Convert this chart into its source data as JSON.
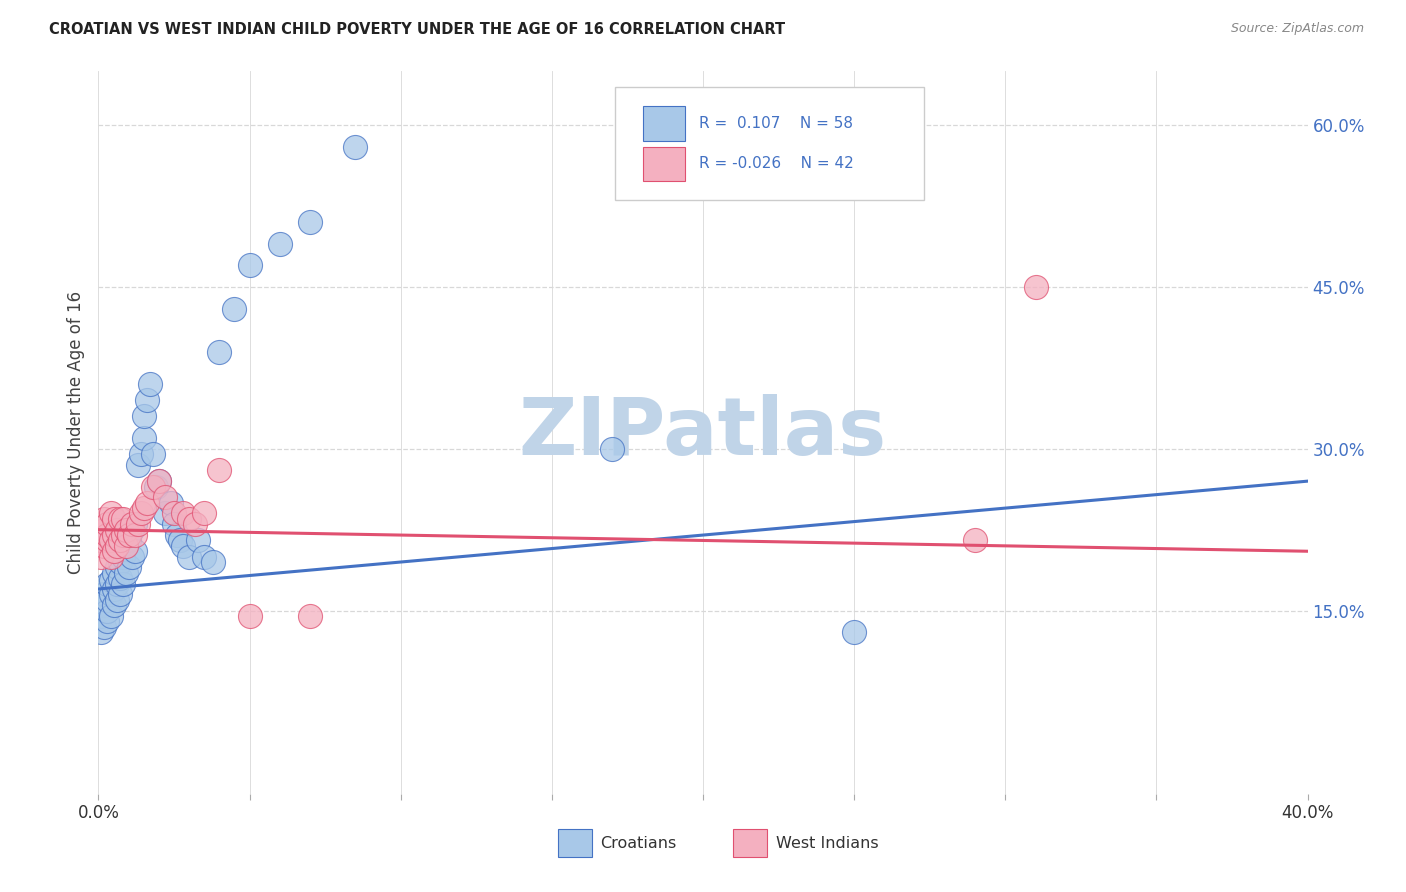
{
  "title": "CROATIAN VS WEST INDIAN CHILD POVERTY UNDER THE AGE OF 16 CORRELATION CHART",
  "source": "Source: ZipAtlas.com",
  "ylabel": "Child Poverty Under the Age of 16",
  "xlim": [
    0.0,
    0.4
  ],
  "ylim": [
    -0.02,
    0.65
  ],
  "right_yticks": [
    0.15,
    0.3,
    0.45,
    0.6
  ],
  "right_yticklabels": [
    "15.0%",
    "30.0%",
    "45.0%",
    "60.0%"
  ],
  "croatian_color": "#a8c8e8",
  "west_indian_color": "#f4b0c0",
  "croatian_line_color": "#4472c4",
  "west_indian_line_color": "#e05070",
  "background_color": "#ffffff",
  "grid_color": "#d8d8d8",
  "watermark": "ZIPatlas",
  "watermark_color_zip": "#c0d4e8",
  "watermark_color_atlas": "#90aac8",
  "cr_trend_x0": 0.0,
  "cr_trend_y0": 0.17,
  "cr_trend_x1": 0.4,
  "cr_trend_y1": 0.27,
  "wi_trend_x0": 0.0,
  "wi_trend_y0": 0.225,
  "wi_trend_x1": 0.4,
  "wi_trend_y1": 0.205,
  "cr_x": [
    0.001,
    0.001,
    0.002,
    0.002,
    0.002,
    0.003,
    0.003,
    0.003,
    0.003,
    0.004,
    0.004,
    0.004,
    0.005,
    0.005,
    0.005,
    0.006,
    0.006,
    0.006,
    0.007,
    0.007,
    0.007,
    0.008,
    0.008,
    0.009,
    0.009,
    0.01,
    0.01,
    0.011,
    0.011,
    0.012,
    0.012,
    0.013,
    0.014,
    0.015,
    0.015,
    0.016,
    0.017,
    0.018,
    0.019,
    0.02,
    0.022,
    0.024,
    0.025,
    0.026,
    0.027,
    0.028,
    0.03,
    0.033,
    0.035,
    0.038,
    0.04,
    0.045,
    0.05,
    0.06,
    0.07,
    0.085,
    0.17,
    0.25
  ],
  "cr_y": [
    0.13,
    0.145,
    0.135,
    0.155,
    0.165,
    0.14,
    0.15,
    0.16,
    0.175,
    0.145,
    0.165,
    0.178,
    0.155,
    0.17,
    0.185,
    0.16,
    0.175,
    0.19,
    0.165,
    0.18,
    0.195,
    0.175,
    0.2,
    0.185,
    0.21,
    0.19,
    0.215,
    0.2,
    0.225,
    0.205,
    0.23,
    0.285,
    0.295,
    0.31,
    0.33,
    0.345,
    0.36,
    0.295,
    0.265,
    0.27,
    0.24,
    0.25,
    0.23,
    0.22,
    0.215,
    0.21,
    0.2,
    0.215,
    0.2,
    0.195,
    0.39,
    0.43,
    0.47,
    0.49,
    0.51,
    0.58,
    0.3,
    0.13
  ],
  "wi_x": [
    0.001,
    0.001,
    0.002,
    0.002,
    0.002,
    0.003,
    0.003,
    0.003,
    0.004,
    0.004,
    0.004,
    0.005,
    0.005,
    0.005,
    0.006,
    0.006,
    0.007,
    0.007,
    0.008,
    0.008,
    0.009,
    0.009,
    0.01,
    0.011,
    0.012,
    0.013,
    0.014,
    0.015,
    0.016,
    0.018,
    0.02,
    0.022,
    0.025,
    0.028,
    0.03,
    0.032,
    0.035,
    0.04,
    0.05,
    0.07,
    0.29,
    0.31
  ],
  "wi_y": [
    0.2,
    0.215,
    0.21,
    0.225,
    0.235,
    0.215,
    0.22,
    0.23,
    0.2,
    0.215,
    0.24,
    0.205,
    0.22,
    0.235,
    0.21,
    0.225,
    0.215,
    0.235,
    0.22,
    0.235,
    0.21,
    0.225,
    0.22,
    0.23,
    0.22,
    0.23,
    0.24,
    0.245,
    0.25,
    0.265,
    0.27,
    0.255,
    0.24,
    0.24,
    0.235,
    0.23,
    0.24,
    0.28,
    0.145,
    0.145,
    0.215,
    0.45
  ]
}
